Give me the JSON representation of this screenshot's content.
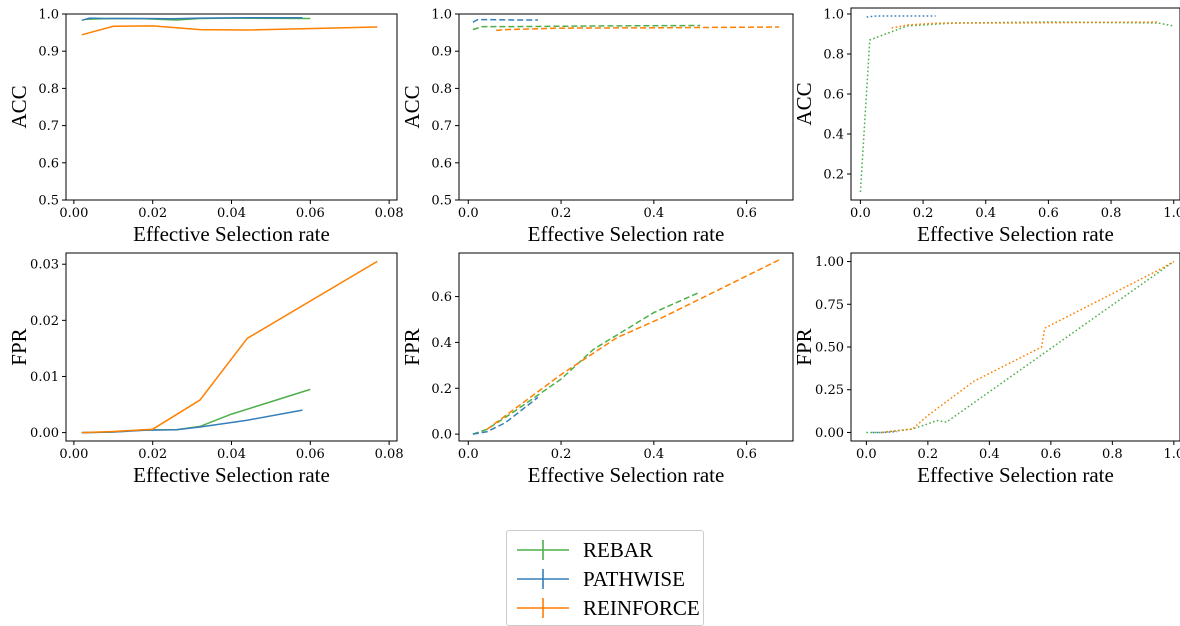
{
  "legend": {
    "items": [
      {
        "label": "REBAR",
        "color": "#4daf4a"
      },
      {
        "label": "PATHWISE",
        "color": "#377eb8"
      },
      {
        "label": "REINFORCE",
        "color": "#ff7f00"
      }
    ]
  },
  "chart_data": [
    {
      "type": "line",
      "ylabel": "ACC",
      "xlabel": "Effective Selection rate",
      "xlim": [
        -0.002,
        0.082
      ],
      "ylim": [
        0.5,
        1.0
      ],
      "xticks": [
        0.0,
        0.02,
        0.04,
        0.06,
        0.08
      ],
      "xticklabels": [
        "0.00",
        "0.02",
        "0.04",
        "0.06",
        "0.08"
      ],
      "yticks": [
        0.5,
        0.6,
        0.7,
        0.8,
        0.9,
        1.0
      ],
      "yticklabels": [
        "0.5",
        "0.6",
        "0.7",
        "0.8",
        "0.9",
        "1.0"
      ],
      "linestyle": "solid",
      "series": [
        {
          "name": "REBAR",
          "color": "#4daf4a",
          "x": [
            0.003,
            0.01,
            0.018,
            0.026,
            0.032,
            0.04,
            0.06
          ],
          "y": [
            0.986,
            0.988,
            0.987,
            0.984,
            0.988,
            0.989,
            0.988
          ]
        },
        {
          "name": "PATHWISE",
          "color": "#377eb8",
          "x": [
            0.002,
            0.004,
            0.008,
            0.018,
            0.025,
            0.032,
            0.044,
            0.058
          ],
          "y": [
            0.983,
            0.989,
            0.988,
            0.988,
            0.987,
            0.989,
            0.99,
            0.99
          ]
        },
        {
          "name": "REINFORCE",
          "color": "#ff7f00",
          "x": [
            0.002,
            0.01,
            0.02,
            0.032,
            0.044,
            0.077
          ],
          "y": [
            0.944,
            0.967,
            0.968,
            0.958,
            0.957,
            0.965
          ]
        }
      ]
    },
    {
      "type": "line",
      "ylabel": "ACC",
      "xlabel": "Effective Selection rate",
      "xlim": [
        -0.02,
        0.7
      ],
      "ylim": [
        0.5,
        1.0
      ],
      "xticks": [
        0.0,
        0.2,
        0.4,
        0.6
      ],
      "xticklabels": [
        "0.0",
        "0.2",
        "0.4",
        "0.6"
      ],
      "yticks": [
        0.5,
        0.6,
        0.7,
        0.8,
        0.9,
        1.0
      ],
      "yticklabels": [
        "0.5",
        "0.6",
        "0.7",
        "0.8",
        "0.9",
        "1.0"
      ],
      "linestyle": "dashed",
      "series": [
        {
          "name": "REBAR",
          "color": "#4daf4a",
          "x": [
            0.01,
            0.02,
            0.03,
            0.1,
            0.3,
            0.5
          ],
          "y": [
            0.958,
            0.962,
            0.966,
            0.966,
            0.968,
            0.969
          ]
        },
        {
          "name": "PATHWISE",
          "color": "#377eb8",
          "x": [
            0.01,
            0.02,
            0.04,
            0.1,
            0.15
          ],
          "y": [
            0.978,
            0.985,
            0.985,
            0.984,
            0.984
          ]
        },
        {
          "name": "REINFORCE",
          "color": "#ff7f00",
          "x": [
            0.06,
            0.08,
            0.2,
            0.4,
            0.67
          ],
          "y": [
            0.956,
            0.958,
            0.962,
            0.963,
            0.965
          ]
        }
      ]
    },
    {
      "type": "line",
      "ylabel": "ACC",
      "xlabel": "Effective Selection rate",
      "xlim": [
        -0.03,
        1.02
      ],
      "ylim": [
        0.07,
        1.03
      ],
      "xticks": [
        0.0,
        0.2,
        0.4,
        0.6,
        0.8,
        1.0
      ],
      "xticklabels": [
        "0.0",
        "0.2",
        "0.4",
        "0.6",
        "0.8",
        "1.0"
      ],
      "yticks": [
        0.2,
        0.4,
        0.6,
        0.8,
        1.0
      ],
      "yticklabels": [
        "0.2",
        "0.4",
        "0.6",
        "0.8",
        "1.0"
      ],
      "linestyle": "dotted",
      "series": [
        {
          "name": "REBAR",
          "color": "#4daf4a",
          "x": [
            0.0,
            0.03,
            0.08,
            0.15,
            0.3,
            0.6,
            0.95,
            1.0
          ],
          "y": [
            0.11,
            0.87,
            0.9,
            0.94,
            0.955,
            0.96,
            0.955,
            0.94
          ]
        },
        {
          "name": "PATHWISE",
          "color": "#377eb8",
          "x": [
            0.02,
            0.05,
            0.24
          ],
          "y": [
            0.985,
            0.99,
            0.99
          ]
        },
        {
          "name": "REINFORCE",
          "color": "#ff7f00",
          "x": [
            0.1,
            0.15,
            0.25,
            0.5,
            0.95
          ],
          "y": [
            0.93,
            0.945,
            0.955,
            0.955,
            0.96
          ]
        }
      ]
    },
    {
      "type": "line",
      "ylabel": "FPR",
      "xlabel": "Effective Selection rate",
      "xlim": [
        -0.002,
        0.082
      ],
      "ylim": [
        -0.0015,
        0.032
      ],
      "xticks": [
        0.0,
        0.02,
        0.04,
        0.06,
        0.08
      ],
      "xticklabels": [
        "0.00",
        "0.02",
        "0.04",
        "0.06",
        "0.08"
      ],
      "yticks": [
        0.0,
        0.01,
        0.02,
        0.03
      ],
      "yticklabels": [
        "0.00",
        "0.01",
        "0.02",
        "0.03"
      ],
      "linestyle": "solid",
      "series": [
        {
          "name": "REBAR",
          "color": "#4daf4a",
          "x": [
            0.002,
            0.01,
            0.018,
            0.026,
            0.032,
            0.04,
            0.06
          ],
          "y": [
            0.0,
            0.0001,
            0.0005,
            0.0005,
            0.0011,
            0.0033,
            0.0077
          ]
        },
        {
          "name": "PATHWISE",
          "color": "#377eb8",
          "x": [
            0.002,
            0.01,
            0.018,
            0.026,
            0.032,
            0.044,
            0.058
          ],
          "y": [
            0.0,
            0.0001,
            0.0004,
            0.0005,
            0.001,
            0.0022,
            0.004
          ]
        },
        {
          "name": "REINFORCE",
          "color": "#ff7f00",
          "x": [
            0.002,
            0.01,
            0.02,
            0.032,
            0.044,
            0.077
          ],
          "y": [
            0.0,
            0.0002,
            0.0006,
            0.0058,
            0.0168,
            0.0305
          ]
        }
      ]
    },
    {
      "type": "line",
      "ylabel": "FPR",
      "xlabel": "Effective Selection rate",
      "xlim": [
        -0.02,
        0.7
      ],
      "ylim": [
        -0.03,
        0.79
      ],
      "xticks": [
        0.0,
        0.2,
        0.4,
        0.6
      ],
      "xticklabels": [
        "0.0",
        "0.2",
        "0.4",
        "0.6"
      ],
      "yticks": [
        0.0,
        0.2,
        0.4,
        0.6
      ],
      "yticklabels": [
        "0.0",
        "0.2",
        "0.4",
        "0.6"
      ],
      "linestyle": "dashed",
      "series": [
        {
          "name": "REBAR",
          "color": "#4daf4a",
          "x": [
            0.01,
            0.04,
            0.1,
            0.2,
            0.27,
            0.4,
            0.5
          ],
          "y": [
            0.0,
            0.02,
            0.1,
            0.24,
            0.37,
            0.53,
            0.62
          ]
        },
        {
          "name": "PATHWISE",
          "color": "#377eb8",
          "x": [
            0.01,
            0.04,
            0.08,
            0.15
          ],
          "y": [
            0.0,
            0.01,
            0.05,
            0.16
          ]
        },
        {
          "name": "REINFORCE",
          "color": "#ff7f00",
          "x": [
            0.04,
            0.1,
            0.2,
            0.32,
            0.42,
            0.67
          ],
          "y": [
            0.02,
            0.11,
            0.26,
            0.42,
            0.51,
            0.76
          ]
        }
      ]
    },
    {
      "type": "line",
      "ylabel": "FPR",
      "xlabel": "Effective Selection rate",
      "xlim": [
        -0.05,
        1.02
      ],
      "ylim": [
        -0.05,
        1.05
      ],
      "xticks": [
        0.0,
        0.2,
        0.4,
        0.6,
        0.8,
        1.0
      ],
      "xticklabels": [
        "0.0",
        "0.2",
        "0.4",
        "0.6",
        "0.8",
        "1.0"
      ],
      "yticks": [
        0.0,
        0.25,
        0.5,
        0.75,
        1.0
      ],
      "yticklabels": [
        "0.00",
        "0.25",
        "0.50",
        "0.75",
        "1.00"
      ],
      "linestyle": "dotted",
      "series": [
        {
          "name": "REBAR",
          "color": "#4daf4a",
          "x": [
            0.0,
            0.05,
            0.1,
            0.15,
            0.2,
            0.23,
            0.26,
            1.0
          ],
          "y": [
            0.0,
            0.0,
            0.01,
            0.02,
            0.05,
            0.07,
            0.06,
            1.0
          ]
        },
        {
          "name": "PATHWISE",
          "color": "#377eb8",
          "x": [
            0.02,
            0.05,
            0.1
          ],
          "y": [
            0.0,
            0.0,
            0.005
          ]
        },
        {
          "name": "REINFORCE",
          "color": "#ff7f00",
          "x": [
            0.05,
            0.15,
            0.2,
            0.35,
            0.57,
            0.58,
            0.95,
            1.0
          ],
          "y": [
            0.0,
            0.02,
            0.1,
            0.3,
            0.5,
            0.61,
            0.95,
            1.0
          ]
        }
      ]
    }
  ]
}
